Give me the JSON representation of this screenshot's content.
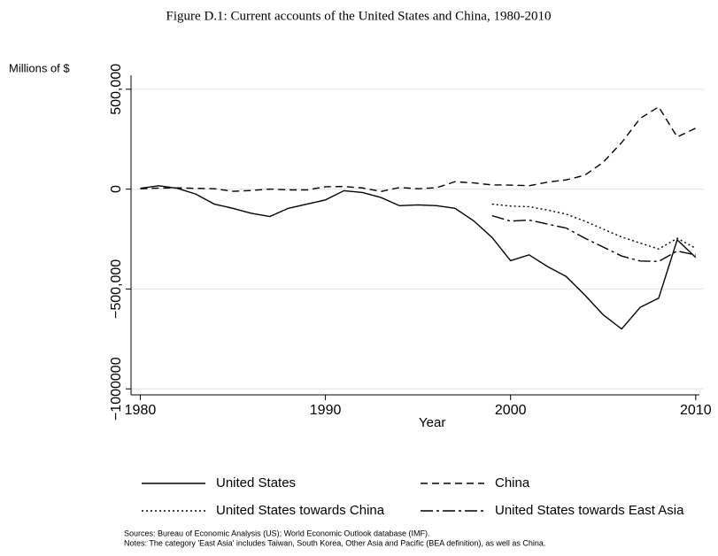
{
  "chart_data": {
    "type": "line",
    "title": "Figure D.1: Current accounts of the United States and China, 1980-2010",
    "ylabel": "Millions of $",
    "xlabel": "Year",
    "x": [
      1980,
      1981,
      1982,
      1983,
      1984,
      1985,
      1986,
      1987,
      1988,
      1989,
      1990,
      1991,
      1992,
      1993,
      1994,
      1995,
      1996,
      1997,
      1998,
      1999,
      2000,
      2001,
      2002,
      2003,
      2004,
      2005,
      2006,
      2007,
      2008,
      2009,
      2010
    ],
    "series": [
      {
        "name": "United States",
        "color": "#000000",
        "line_style": "solid",
        "values": [
          4000,
          17000,
          4000,
          -25000,
          -75000,
          -96000,
          -121000,
          -137000,
          -96000,
          -75000,
          -54000,
          -8000,
          -17000,
          -42000,
          -83000,
          -79000,
          -83000,
          -96000,
          -158000,
          -242000,
          -358000,
          -329000,
          -388000,
          -437000,
          -529000,
          -629000,
          -700000,
          -592000,
          -546000,
          -254000,
          -342000
        ]
      },
      {
        "name": "China",
        "color": "#000000",
        "line_style": "dashed",
        "values": [
          2000,
          5000,
          6000,
          4000,
          2000,
          -11000,
          -7000,
          300,
          -4000,
          -4000,
          12000,
          13000,
          6000,
          -12000,
          8000,
          2000,
          7000,
          37000,
          31000,
          21000,
          20000,
          17000,
          35000,
          46000,
          69000,
          134000,
          233000,
          354000,
          412000,
          261000,
          305000
        ]
      },
      {
        "name": "United States towards China",
        "color": "#000000",
        "line_style": "dotted",
        "values": [
          null,
          null,
          null,
          null,
          null,
          null,
          null,
          null,
          null,
          null,
          null,
          null,
          null,
          null,
          null,
          null,
          null,
          null,
          null,
          -75000,
          -85000,
          -88000,
          -105000,
          -125000,
          -160000,
          -200000,
          -240000,
          -270000,
          -300000,
          -246000,
          -296000
        ]
      },
      {
        "name": "United States towards East Asia",
        "color": "#000000",
        "line_style": "dashdot",
        "values": [
          null,
          null,
          null,
          null,
          null,
          null,
          null,
          null,
          null,
          null,
          null,
          null,
          null,
          null,
          null,
          null,
          null,
          null,
          null,
          -133000,
          -160000,
          -155000,
          -175000,
          -195000,
          -245000,
          -290000,
          -335000,
          -360000,
          -362000,
          -310000,
          -330000
        ]
      }
    ],
    "xlim": [
      1979.5,
      2010.2
    ],
    "xticks": [
      1980,
      1990,
      2000,
      2010
    ],
    "ylim": [
      -1030000,
      570000
    ],
    "yticks": [
      {
        "value": 500000,
        "label": "500,000"
      },
      0,
      {
        "value": -500000,
        "label": "−500,000"
      },
      {
        "value": -1000000,
        "label": "−1000000"
      }
    ],
    "grid": true,
    "legend": "bottom",
    "notes": [
      "Sources: Bureau of Economic Analysis (US); World Economic Outlook database (IMF).",
      "Notes: The category 'East Asia' includes Taiwan, South Korea, Other Asia and Pacific (BEA definition), as well as China."
    ]
  }
}
